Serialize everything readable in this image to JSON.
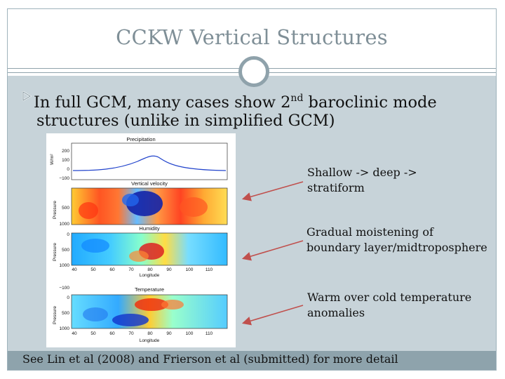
{
  "slide": {
    "title": "CCKW Vertical Structures",
    "bullet": {
      "text_before_sup": "In full GCM, many cases show 2",
      "superscript": "nd",
      "text_after_sup": " baroclinic mode",
      "line2": "structures (unlike in simplified GCM)"
    },
    "annotations": [
      {
        "line1": "Shallow -> deep ->",
        "line2": "stratiform"
      },
      {
        "line1": "Gradual moistening of",
        "line2": "boundary layer/midtroposphere"
      },
      {
        "line1": "Warm over cold temperature",
        "line2": "anomalies"
      }
    ],
    "footer": "See Lin et al (2008) and Frierson et al (submitted) for more detail"
  },
  "figure": {
    "precip_panel": {
      "title": "Precipitation",
      "ylabel": "W/m²",
      "yticks": [
        "200",
        "100",
        "0",
        "−100"
      ]
    },
    "vertical_velocity_panel": {
      "title": "Vertical velocity",
      "ylabel": "Pressure",
      "yticks": [
        "500",
        "1000"
      ]
    },
    "humidity_panel": {
      "title": "Humidity",
      "ylabel": "Pressure",
      "yticks": [
        "0",
        "500",
        "1000"
      ],
      "xticks": [
        "40",
        "50",
        "60",
        "70",
        "80",
        "90",
        "100",
        "110"
      ],
      "xlabel": "Longitude"
    },
    "temperature_panel": {
      "title": "Temperature",
      "ylabel": "Pressure",
      "yticks": [
        "−100",
        "0",
        "500",
        "1000"
      ],
      "xticks": [
        "40",
        "50",
        "60",
        "70",
        "80",
        "90",
        "100",
        "110"
      ],
      "xlabel": "Longitude"
    }
  },
  "colors": {
    "content_bg": "#c7d3d9",
    "footer_bg": "#8ea3ac",
    "title_text": "#7f8f97",
    "arrow": "#c0504d"
  }
}
